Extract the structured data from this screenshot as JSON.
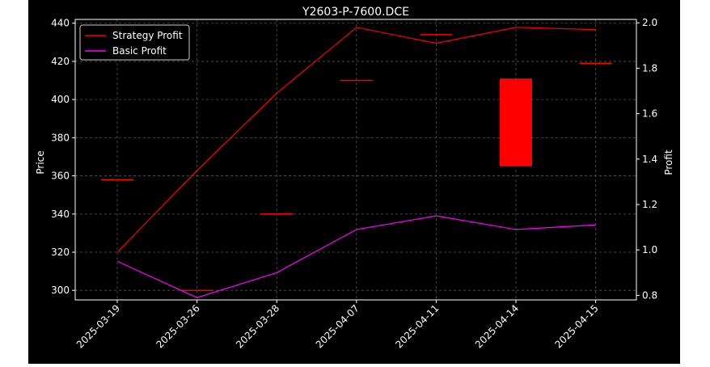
{
  "chart_data": {
    "type": "line",
    "title": "Y2603-P-7600.DCE",
    "x_categories": [
      "2025-03-19",
      "2025-03-26",
      "2025-03-28",
      "2025-04-07",
      "2025-04-11",
      "2025-04-14",
      "2025-04-15"
    ],
    "left_axis": {
      "label": "Price",
      "ylim": [
        295,
        442
      ],
      "ticks": [
        300,
        320,
        340,
        360,
        380,
        400,
        420,
        440
      ]
    },
    "right_axis": {
      "label": "Profit",
      "ylim": [
        0.78,
        2.015
      ],
      "ticks": [
        "0.8",
        "1.0",
        "1.2",
        "1.4",
        "1.6",
        "1.8",
        "2.0"
      ]
    },
    "price_candles": [
      {
        "x": "2025-03-19",
        "open": 358,
        "close": 358
      },
      {
        "x": "2025-03-26",
        "open": 300,
        "close": 300
      },
      {
        "x": "2025-03-28",
        "open": 340,
        "close": 340
      },
      {
        "x": "2025-04-07",
        "open": 410,
        "close": 410
      },
      {
        "x": "2025-04-11",
        "open": 434,
        "close": 434
      },
      {
        "x": "2025-04-14",
        "open": 411,
        "close": 365
      },
      {
        "x": "2025-04-15",
        "open": 419,
        "close": 419
      }
    ],
    "series": [
      {
        "name": "Strategy Profit",
        "color": "#ff0000",
        "values": [
          0.99,
          1.35,
          1.69,
          1.98,
          1.91,
          1.98,
          1.97
        ]
      },
      {
        "name": "Basic Profit",
        "color": "#ff00ff",
        "values": [
          0.95,
          0.79,
          0.9,
          1.09,
          1.15,
          1.09,
          1.11
        ]
      }
    ],
    "candle_color": "#ff0000",
    "grid": true,
    "legend_position": "top-left"
  }
}
